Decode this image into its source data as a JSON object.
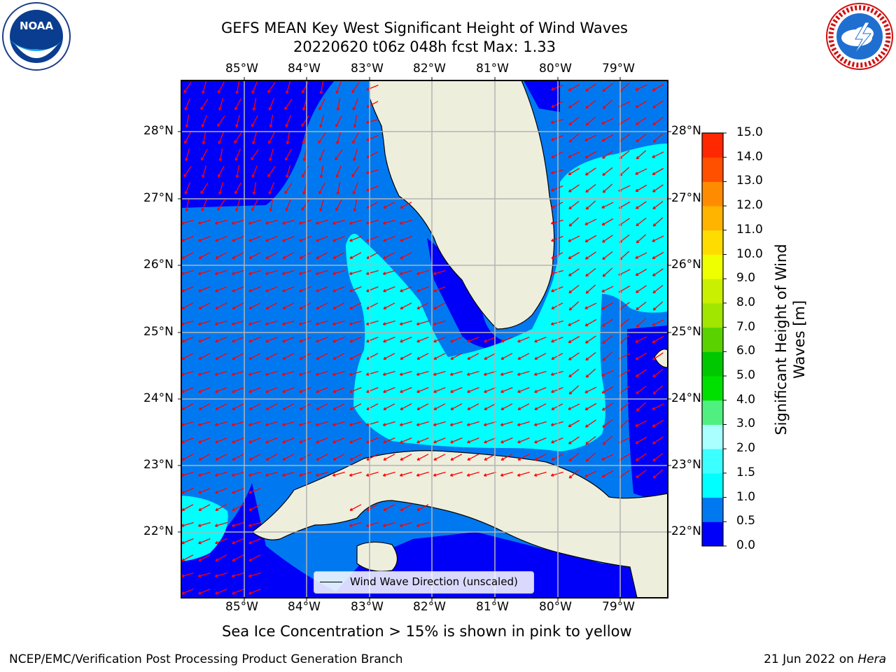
{
  "title": {
    "line1": "GEFS MEAN Key West Significant Height of Wind Waves",
    "line2": "20220620 t06z 048h fcst   Max: 1.33"
  },
  "logos": {
    "left": {
      "name": "noaa-logo",
      "text": "NOAA"
    },
    "right": {
      "name": "national-weather-service-logo",
      "text": "NATIONAL WEATHER SERVICE"
    }
  },
  "axes": {
    "lon_labels": [
      "85°W",
      "84°W",
      "83°W",
      "82°W",
      "81°W",
      "80°W",
      "79°W"
    ],
    "lat_labels": [
      "28°N",
      "27°N",
      "26°N",
      "25°N",
      "24°N",
      "23°N",
      "22°N"
    ]
  },
  "legend": {
    "label": "Wind Wave Direction (unscaled)"
  },
  "colorbar": {
    "label_line1": "Significant Height of Wind",
    "label_line2": "Waves [m]",
    "ticks": [
      "0.0",
      "0.5",
      "1.0",
      "1.5",
      "2.0",
      "3.0",
      "4.0",
      "5.0",
      "6.0",
      "7.0",
      "8.0",
      "9.0",
      "10.0",
      "11.0",
      "12.0",
      "13.0",
      "14.0",
      "15.0"
    ],
    "colors": [
      "#0000f8",
      "#0079f0",
      "#00ffff",
      "#3cffff",
      "#aaffff",
      "#50f080",
      "#00e000",
      "#00c800",
      "#5ad200",
      "#a0e600",
      "#c8f000",
      "#f0ff00",
      "#ffdc00",
      "#ffb400",
      "#ff8c00",
      "#ff5000",
      "#ff2800",
      "#ff0000"
    ]
  },
  "note": "Sea Ice Concentration > 15% is shown in pink to yellow",
  "footer": {
    "left": "NCEP/EMC/Verification Post Processing Product Generation Branch",
    "right_date": "21 Jun 2022 on ",
    "right_host": "Hera"
  },
  "map_colors": {
    "land": "#eeeedd",
    "deep_blue": "#0000f8",
    "mid_blue": "#0079f0",
    "cyan": "#00ffff",
    "grid": "#b4b4b4",
    "arrow": "#ff0000"
  }
}
